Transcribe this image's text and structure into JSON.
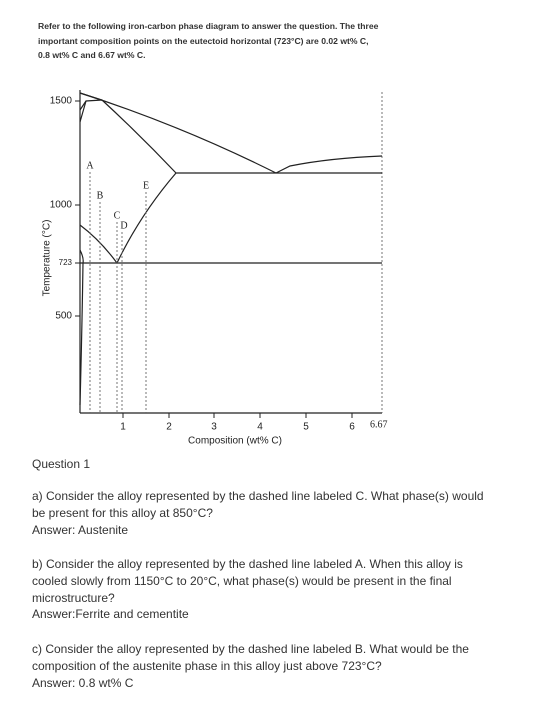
{
  "intro": {
    "lines": [
      "Refer to the following iron-carbon phase diagram to answer the question. The three",
      "important composition points on the eutectoid horizontal (723°C) are 0.02 wt% C,",
      "0.8 wt% C and 6.67 wt% C."
    ]
  },
  "figure": {
    "y_axis_label": "Temperature (°C)",
    "x_axis_label": "Composition (wt% C)",
    "y_ticks": [
      "1500",
      "1000",
      "723",
      "500"
    ],
    "x_ticks": [
      "1",
      "2",
      "3",
      "4",
      "5",
      "6",
      "6.67"
    ],
    "line_labels": [
      "A",
      "B",
      "C",
      "D",
      "E"
    ]
  },
  "question": {
    "title": "Question 1",
    "parts": [
      {
        "lines": [
          "a) Consider the alloy represented by the dashed line labeled C. What phase(s) would",
          "be present for this alloy at 850°C?"
        ],
        "answer": "Answer: Austenite"
      },
      {
        "lines": [
          "b) Consider the alloy represented by the dashed line labeled A. When this alloy is",
          "cooled slowly from 1150°C to 20°C, what phase(s) would be present in the final",
          "microstructure?"
        ],
        "answer": "Answer:Ferrite and cementite"
      },
      {
        "lines": [
          "c) Consider the alloy represented by the dashed line labeled B. What would be the",
          "composition of the austenite phase in this alloy just above 723°C?"
        ],
        "answer": "Answer: 0.8 wt% C"
      }
    ]
  }
}
